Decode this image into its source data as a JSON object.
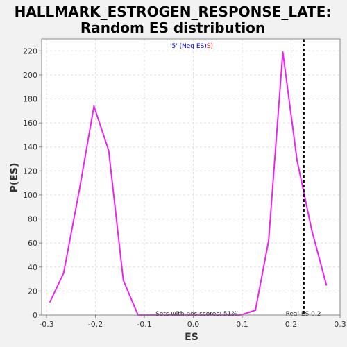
{
  "chart_data": {
    "type": "line",
    "title_line1": "HALLMARK_ESTROGEN_RESPONSE_LATE:",
    "title_line2": "Random ES distribution",
    "xlabel": "ES",
    "ylabel": "P(ES)",
    "xlim": [
      -0.31,
      0.3
    ],
    "ylim": [
      0,
      230
    ],
    "x_ticks": [
      -0.3,
      -0.2,
      -0.1,
      0.0,
      0.1,
      0.2,
      0.3
    ],
    "x_tick_labels": [
      "-0.3",
      "-0.2",
      "-0.1",
      "0.0",
      "0.1",
      "0.2",
      "0.3"
    ],
    "y_ticks": [
      0,
      20,
      40,
      60,
      80,
      100,
      120,
      140,
      160,
      180,
      200,
      220
    ],
    "y_tick_labels": [
      "0",
      "20",
      "40",
      "60",
      "80",
      "100",
      "120",
      "140",
      "160",
      "180",
      "200",
      "220"
    ],
    "grid": true,
    "legend": {
      "prefix": "'5' (",
      "neg_label": "Neg ES",
      "middle": ")",
      "pos_label": "S)",
      "neg_color": "#0000ee",
      "pos_color": "#ee0000"
    },
    "series": [
      {
        "color": "#ee22ee",
        "x": [
          -0.293,
          -0.265,
          -0.233,
          -0.203,
          -0.173,
          -0.143,
          -0.113,
          -0.083,
          -0.053,
          -0.023,
          0.007,
          0.037,
          0.067,
          0.097,
          0.127,
          0.154,
          0.183,
          0.212,
          0.242,
          0.272
        ],
        "y": [
          11,
          35,
          104,
          174,
          137,
          29,
          0,
          0,
          0,
          0,
          0,
          0,
          0,
          0,
          4,
          62,
          219,
          129,
          71,
          25
        ]
      }
    ],
    "real_es": {
      "value": 0.226,
      "label": "Real ES 0.2"
    },
    "annotation": "Sets with pos scores: 51%",
    "colors": {
      "line": "#ee22ee",
      "plot_bg": "#ffffff",
      "page_bg": "#f2f2f2",
      "grid": "#e0e0e0"
    }
  }
}
